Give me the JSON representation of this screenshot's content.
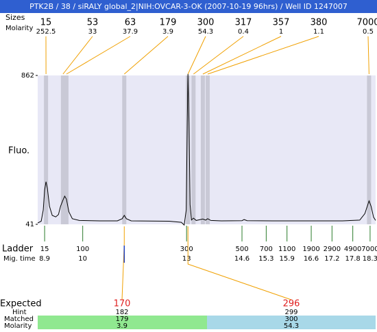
{
  "chart_data": {
    "type": "line",
    "title": "PTK2B / 38 / siRALY global_2|NIH:OVCAR-3-OK (2007-10-19 96hrs) / Well ID 1247007",
    "ylabel": "Fluo.",
    "ylim": [
      41,
      862
    ],
    "yticks": [
      41,
      862
    ],
    "xlim": [
      8.7,
      18.46
    ],
    "color": "#000000",
    "x": [
      8.7,
      8.8,
      8.86,
      8.9,
      8.94,
      8.98,
      9.04,
      9.12,
      9.22,
      9.3,
      9.36,
      9.43,
      9.48,
      9.53,
      9.6,
      9.7,
      9.9,
      10.5,
      11.0,
      11.14,
      11.2,
      11.26,
      11.4,
      12.5,
      12.85,
      12.93,
      12.99,
      13.02,
      13.04,
      13.07,
      13.1,
      13.14,
      13.2,
      13.28,
      13.47,
      13.55,
      13.61,
      13.7,
      14.0,
      14.6,
      14.66,
      14.75,
      15.5,
      16.5,
      17.5,
      18.0,
      18.15,
      18.27,
      18.33,
      18.4,
      18.46
    ],
    "values": [
      48,
      58,
      120,
      230,
      276,
      240,
      140,
      90,
      82,
      95,
      140,
      175,
      196,
      180,
      110,
      72,
      62,
      60,
      60,
      72,
      90,
      72,
      60,
      58,
      52,
      37,
      120,
      600,
      870,
      600,
      150,
      65,
      75,
      62,
      70,
      64,
      72,
      62,
      60,
      61,
      67,
      61,
      60,
      60,
      60,
      64,
      100,
      170,
      140,
      80,
      62
    ],
    "peaks": {
      "size_label": "Sizes",
      "molarity_label": "Molarity",
      "sizes": [
        15,
        53,
        63,
        179,
        300,
        317,
        357,
        380,
        7000
      ],
      "molarity": [
        252.5,
        33,
        37.9,
        3.9,
        54.3,
        0.4,
        1,
        1.1,
        0.5
      ],
      "times": [
        8.94,
        9.43,
        9.53,
        11.2,
        13.04,
        13.2,
        13.47,
        13.61,
        18.27
      ]
    },
    "ladder": {
      "label": "Ladder",
      "time_label": "Mig. time",
      "sizes": [
        15,
        100,
        300,
        500,
        700,
        1100,
        1900,
        2900,
        4900,
        7000
      ],
      "times": [
        8.9,
        10,
        13,
        14.6,
        15.3,
        15.9,
        16.6,
        17.2,
        17.8,
        18.3
      ]
    },
    "expected": {
      "label": "Expected",
      "hint_label": "Hint",
      "matched_label": "Matched",
      "molarity_label": "Molarity",
      "values": [
        170,
        296
      ],
      "hint": [
        182,
        299
      ],
      "matched": [
        179,
        300
      ],
      "molarity": [
        3.9,
        54.3
      ]
    }
  }
}
